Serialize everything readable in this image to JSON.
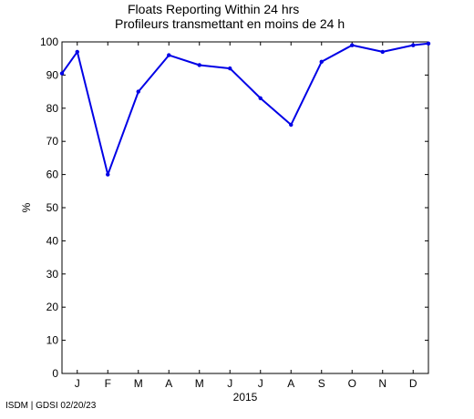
{
  "title_en": "Floats Reporting Within 24 hrs",
  "title_fr": "Profileurs transmettant en moins de 24 h",
  "footer": "ISDM | GDSI 02/20/23",
  "colors": {
    "series": "#0000e6",
    "axis": "#000000",
    "background": "#ffffff"
  },
  "chart_data": {
    "type": "line",
    "title": "Floats Reporting Within 24 hrs / Profileurs transmettant en moins de 24 h",
    "xlabel": "2015",
    "ylabel": "%",
    "ylim": [
      0,
      100
    ],
    "yticks": [
      0,
      10,
      20,
      30,
      40,
      50,
      60,
      70,
      80,
      90,
      100
    ],
    "grid": false,
    "legend": "none",
    "x_tick_labels": [
      "J",
      "F",
      "M",
      "A",
      "M",
      "J",
      "J",
      "A",
      "S",
      "O",
      "N",
      "D"
    ],
    "x": [
      0.5,
      1,
      2,
      3,
      4,
      5,
      6,
      7,
      8,
      9,
      10,
      11,
      12,
      12.5
    ],
    "series": [
      {
        "values": [
          90.5,
          97,
          60,
          85,
          96,
          93,
          92,
          83,
          75,
          94,
          99,
          97,
          99,
          99.5
        ]
      }
    ]
  }
}
